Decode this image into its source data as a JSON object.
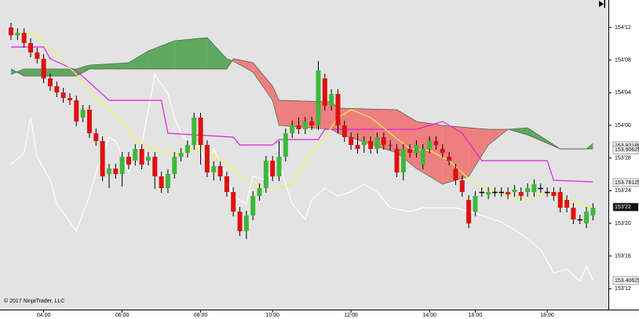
{
  "chart_data": {
    "type": "candlestick",
    "copyright": "© 2017 NinjaTrader, LLC",
    "categories": [
      null,
      null,
      null,
      null,
      null,
      "04:00",
      null,
      null,
      null,
      null,
      null,
      null,
      null,
      null,
      null,
      null,
      null,
      "06:00",
      null,
      null,
      null,
      null,
      null,
      null,
      null,
      null,
      null,
      null,
      null,
      "08:00",
      null,
      null,
      null,
      null,
      null,
      null,
      null,
      null,
      null,
      null,
      "10:00",
      null,
      null,
      null,
      null,
      null,
      null,
      null,
      null,
      null,
      null,
      null,
      "12:00",
      null,
      null,
      null,
      null,
      null,
      null,
      null,
      null,
      null,
      null,
      null,
      "14:00",
      null,
      null,
      null,
      null,
      null,
      null,
      "16:00",
      null,
      null,
      null,
      null,
      null,
      null,
      null,
      null,
      null,
      null,
      "18:00",
      null,
      null,
      null,
      null,
      null,
      null,
      null
    ],
    "ylim": [
      153.295,
      154.48
    ],
    "yticks": [
      {
        "value": 154.375,
        "label": "154'12"
      },
      {
        "value": 154.25,
        "label": "154'08"
      },
      {
        "value": 154.125,
        "label": "154'04"
      },
      {
        "value": 154.0,
        "label": "154'00"
      },
      {
        "value": 153.875,
        "label": "153'28"
      },
      {
        "value": 153.75,
        "label": "153'24"
      },
      {
        "value": 153.625,
        "label": "153'20"
      },
      {
        "value": 153.5,
        "label": "153'16"
      },
      {
        "value": 153.375,
        "label": "153'12"
      }
    ],
    "up_color": "#3cb83c",
    "down_color": "#e01010",
    "ohlc": [
      [
        154.375,
        154.393,
        154.327,
        154.345
      ],
      [
        154.345,
        154.372,
        154.327,
        154.354
      ],
      [
        154.354,
        154.372,
        154.297,
        154.315
      ],
      [
        154.315,
        154.333,
        154.261,
        154.279
      ],
      [
        154.279,
        154.297,
        154.237,
        154.255
      ],
      [
        154.255,
        154.273,
        154.162,
        154.18
      ],
      [
        154.18,
        154.198,
        154.132,
        154.15
      ],
      [
        154.15,
        154.168,
        154.108,
        154.126
      ],
      [
        154.126,
        154.144,
        154.087,
        154.105
      ],
      [
        154.105,
        154.123,
        154.078,
        154.096
      ],
      [
        154.096,
        154.114,
        153.997,
        154.015
      ],
      [
        154.03,
        154.078,
        154.012,
        154.06
      ],
      [
        154.06,
        154.078,
        153.952,
        153.97
      ],
      [
        153.97,
        153.988,
        153.922,
        153.94
      ],
      [
        153.94,
        153.958,
        153.787,
        153.805
      ],
      [
        153.814,
        153.853,
        153.76,
        153.835
      ],
      [
        153.835,
        153.853,
        153.796,
        153.814
      ],
      [
        153.814,
        153.898,
        153.766,
        153.88
      ],
      [
        153.88,
        153.898,
        153.832,
        153.85
      ],
      [
        153.865,
        153.928,
        153.847,
        153.91
      ],
      [
        153.91,
        153.928,
        153.832,
        153.85
      ],
      [
        153.865,
        153.898,
        153.847,
        153.88
      ],
      [
        153.88,
        153.898,
        153.757,
        153.805
      ],
      [
        153.805,
        153.823,
        153.742,
        153.76
      ],
      [
        153.76,
        153.832,
        153.742,
        153.814
      ],
      [
        153.814,
        153.898,
        153.796,
        153.88
      ],
      [
        153.88,
        153.913,
        153.862,
        153.895
      ],
      [
        153.895,
        153.943,
        153.877,
        153.925
      ],
      [
        153.925,
        154.048,
        153.907,
        154.03
      ],
      [
        154.03,
        154.048,
        153.85,
        153.925
      ],
      [
        153.925,
        153.943,
        153.802,
        153.82
      ],
      [
        153.82,
        153.862,
        153.79,
        153.844
      ],
      [
        153.844,
        153.862,
        153.787,
        153.805
      ],
      [
        153.805,
        153.823,
        153.727,
        153.745
      ],
      [
        153.745,
        153.763,
        153.652,
        153.67
      ],
      [
        153.67,
        153.688,
        153.577,
        153.595
      ],
      [
        153.595,
        153.673,
        153.565,
        153.655
      ],
      [
        153.655,
        153.748,
        153.637,
        153.73
      ],
      [
        153.73,
        153.778,
        153.712,
        153.76
      ],
      [
        153.76,
        153.883,
        153.742,
        153.865
      ],
      [
        153.865,
        153.883,
        153.787,
        153.805
      ],
      [
        153.805,
        153.94,
        153.787,
        153.88
      ],
      [
        153.88,
        153.988,
        153.862,
        153.97
      ],
      [
        153.97,
        154.018,
        153.952,
        154.0
      ],
      [
        154.0,
        154.03,
        153.967,
        153.985
      ],
      [
        153.985,
        154.033,
        153.967,
        154.015
      ],
      [
        154.015,
        154.033,
        153.982,
        154.0
      ],
      [
        154.0,
        154.246,
        153.982,
        154.21
      ],
      [
        154.18,
        154.198,
        154.057,
        154.075
      ],
      [
        154.075,
        154.138,
        154.057,
        154.12
      ],
      [
        154.12,
        154.138,
        153.97,
        154.0
      ],
      [
        154.0,
        154.018,
        153.937,
        153.955
      ],
      [
        153.955,
        153.973,
        153.907,
        153.925
      ],
      [
        153.925,
        153.97,
        153.892,
        153.91
      ],
      [
        153.925,
        153.958,
        153.895,
        153.94
      ],
      [
        153.94,
        153.958,
        153.892,
        153.91
      ],
      [
        153.91,
        153.973,
        153.892,
        153.955
      ],
      [
        153.955,
        153.973,
        153.907,
        153.925
      ],
      [
        153.925,
        153.943,
        153.904,
        153.922
      ],
      [
        153.91,
        153.928,
        153.802,
        153.82
      ],
      [
        153.82,
        153.928,
        153.79,
        153.91
      ],
      [
        153.91,
        153.928,
        153.877,
        153.895
      ],
      [
        153.895,
        153.943,
        153.877,
        153.925
      ],
      [
        153.85,
        153.928,
        153.832,
        153.91
      ],
      [
        153.91,
        153.958,
        153.892,
        153.94
      ],
      [
        153.94,
        153.958,
        153.907,
        153.925
      ],
      [
        153.91,
        153.928,
        153.877,
        153.895
      ],
      [
        153.88,
        153.898,
        153.847,
        153.865
      ],
      [
        153.835,
        153.853,
        153.772,
        153.79
      ],
      [
        153.79,
        153.808,
        153.727,
        153.745
      ],
      [
        153.715,
        153.733,
        153.607,
        153.625
      ],
      [
        153.67,
        153.748,
        153.652,
        153.73
      ],
      [
        153.745,
        153.763,
        153.727,
        153.745
      ],
      [
        153.736,
        153.763,
        153.718,
        153.745
      ],
      [
        153.745,
        153.763,
        153.727,
        153.745
      ],
      [
        153.745,
        153.763,
        153.727,
        153.745
      ],
      [
        153.745,
        153.763,
        153.718,
        153.736
      ],
      [
        153.745,
        153.772,
        153.727,
        153.754
      ],
      [
        153.745,
        153.763,
        153.712,
        153.73
      ],
      [
        153.745,
        153.778,
        153.727,
        153.76
      ],
      [
        153.745,
        153.793,
        153.727,
        153.775
      ],
      [
        153.76,
        153.778,
        153.742,
        153.76
      ],
      [
        153.745,
        153.763,
        153.727,
        153.745
      ],
      [
        153.745,
        153.763,
        153.712,
        153.73
      ],
      [
        153.745,
        153.763,
        153.667,
        153.685
      ],
      [
        153.715,
        153.733,
        153.667,
        153.685
      ],
      [
        153.685,
        153.703,
        153.622,
        153.64
      ],
      [
        153.64,
        153.658,
        153.622,
        153.64
      ],
      [
        153.625,
        153.688,
        153.607,
        153.67
      ],
      [
        153.655,
        153.703,
        153.637,
        153.685
      ]
    ],
    "cloud": {
      "up_color": "#5fa85f",
      "down_color": "#ef7f7f",
      "x": [
        0,
        2,
        10,
        12,
        18,
        21,
        25,
        30,
        33,
        34,
        37,
        40,
        41,
        49,
        50,
        59,
        62,
        66,
        70,
        73,
        76,
        79,
        84,
        88,
        89
      ],
      "span_a": [
        154.195,
        154.216,
        154.216,
        154.231,
        154.24,
        154.285,
        154.324,
        154.336,
        154.255,
        154.246,
        154.204,
        154.096,
        154.0,
        153.985,
        153.97,
        153.895,
        153.835,
        153.775,
        153.805,
        153.925,
        153.985,
        153.991,
        153.91,
        153.91,
        153.931
      ],
      "span_b": [
        154.216,
        154.189,
        154.189,
        154.216,
        154.216,
        154.216,
        154.216,
        154.216,
        154.216,
        154.255,
        154.24,
        154.15,
        154.096,
        154.09,
        154.066,
        154.06,
        154.015,
        154.0,
        153.991,
        153.985,
        153.985,
        153.964,
        153.91,
        153.91,
        153.91
      ]
    },
    "lines": [
      {
        "color": "#ffffff",
        "x": [
          0,
          2,
          3,
          4,
          6,
          7,
          10,
          12,
          13,
          15,
          16,
          18,
          19,
          20,
          22,
          24,
          25,
          26,
          27,
          28,
          30,
          31,
          33,
          34,
          36,
          37,
          39,
          40,
          41,
          42,
          43,
          45,
          46,
          48,
          50,
          52,
          54,
          56,
          58,
          61,
          63,
          68,
          72,
          75,
          78,
          81,
          83,
          85,
          87,
          88,
          89
        ],
        "values": [
          153.85,
          153.895,
          154.03,
          153.88,
          153.79,
          153.7,
          153.595,
          153.73,
          153.82,
          153.955,
          153.94,
          153.82,
          153.88,
          153.925,
          154.195,
          154.12,
          154.03,
          153.97,
          153.94,
          153.955,
          153.85,
          153.91,
          153.805,
          153.73,
          153.7,
          153.805,
          153.79,
          153.835,
          153.865,
          153.775,
          153.7,
          153.64,
          153.715,
          153.76,
          153.73,
          153.745,
          153.775,
          153.745,
          153.685,
          153.67,
          153.685,
          153.685,
          153.655,
          153.63,
          153.585,
          153.525,
          153.435,
          153.45,
          153.405,
          153.46,
          153.406
        ]
      },
      {
        "color": "#e020e0",
        "x": [
          0,
          5,
          6,
          10,
          15,
          23,
          24,
          34,
          35,
          40,
          41,
          47,
          48,
          62,
          66,
          69,
          72,
          82,
          83,
          89
        ],
        "values": [
          154.3,
          154.3,
          154.255,
          154.21,
          154.096,
          154.096,
          153.97,
          153.955,
          153.925,
          153.925,
          153.946,
          153.946,
          153.985,
          153.985,
          154.015,
          153.97,
          153.865,
          153.865,
          153.79,
          153.784
        ]
      },
      {
        "color": "#f5f54a",
        "x": [
          2,
          4,
          7,
          10,
          13,
          17,
          19,
          22,
          26,
          29,
          33,
          37,
          40,
          43,
          45,
          48,
          50,
          52,
          55,
          58,
          61,
          64,
          67,
          70,
          73,
          76,
          79,
          82,
          85,
          89
        ],
        "values": [
          154.354,
          154.345,
          154.27,
          154.195,
          154.105,
          154.015,
          153.946,
          153.904,
          153.895,
          153.916,
          153.85,
          153.775,
          153.754,
          153.775,
          153.865,
          153.955,
          154.03,
          154.06,
          154.03,
          153.97,
          153.91,
          153.904,
          153.865,
          153.796,
          153.76,
          153.73,
          153.715,
          153.745,
          153.715,
          153.685
        ]
      }
    ],
    "price_markers": [
      153.92188,
      153.90625,
      153.78125,
      {
        "value": 153.6875,
        "label": "153'22"
      },
      153.40625
    ]
  }
}
